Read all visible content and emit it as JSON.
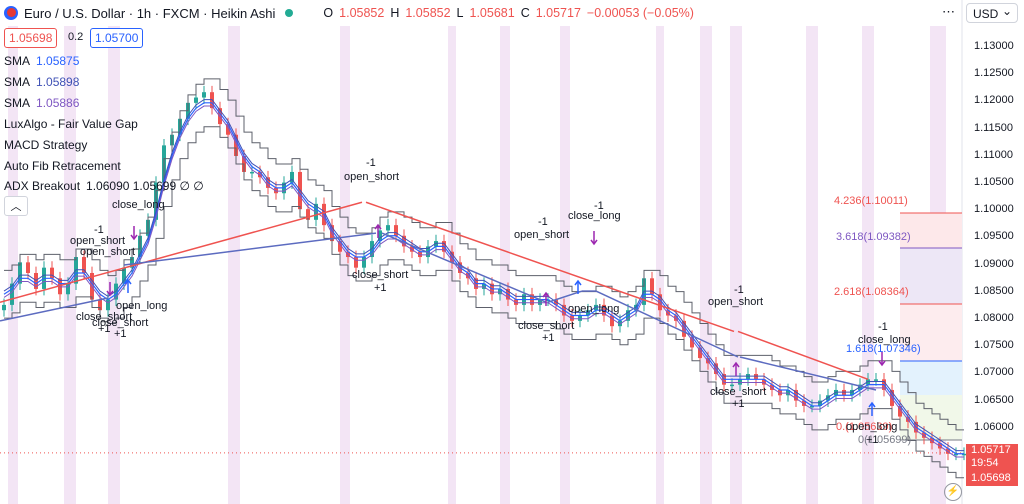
{
  "header": {
    "title": "Euro / U.S. Dollar · 1h · FXCM · Heikin Ashi",
    "ohlc": [
      {
        "k": "O",
        "v": "1.05852"
      },
      {
        "k": "H",
        "v": "1.05852"
      },
      {
        "k": "L",
        "v": "1.05681"
      },
      {
        "k": "C",
        "v": "1.05717"
      }
    ],
    "change": "−0.00053 (−0.05%)",
    "sell_price": "1.05698",
    "spread": "0.2",
    "buy_price": "1.05700",
    "currency": "USD"
  },
  "indicators": [
    {
      "name": "SMA",
      "value": "1.05875",
      "color": "#2962ff"
    },
    {
      "name": "SMA",
      "value": "1.05898",
      "color": "#3f51b5"
    },
    {
      "name": "SMA",
      "value": "1.05886",
      "color": "#7e57c2"
    },
    {
      "name": "LuxAlgo - Fair Value Gap",
      "value": ""
    },
    {
      "name": "MACD Strategy",
      "value": ""
    },
    {
      "name": "Auto Fib Retracement",
      "value": ""
    },
    {
      "name": "ADX Breakout",
      "value": "1.06090  1.05699  ∅  ∅"
    }
  ],
  "price_axis": [
    "1.13000",
    "1.12500",
    "1.12000",
    "1.11500",
    "1.11000",
    "1.10500",
    "1.10000",
    "1.09500",
    "1.09000",
    "1.08500",
    "1.08000",
    "1.07500",
    "1.07000",
    "1.06500",
    "1.06000",
    "1.05500",
    "1.05000"
  ],
  "badges": {
    "last": "1.05717",
    "countdown": "19:54",
    "level": "1.05698"
  },
  "fib_labels": [
    "4.236(1.10011)",
    "3.618(1.09382)",
    "2.618(1.08364)",
    "1.618(1.07346)",
    "0(1.05699)",
    "0.(1.05639)"
  ],
  "trade_labels": [
    {
      "t": "-1"
    },
    {
      "t": "open_short"
    },
    {
      "t": "open_short"
    },
    {
      "t": "close_long"
    },
    {
      "t": "-1"
    },
    {
      "t": "open_short"
    },
    {
      "t": "close_short"
    },
    {
      "t": "+1"
    },
    {
      "t": "-1"
    },
    {
      "t": "close_long"
    },
    {
      "t": "-1"
    },
    {
      "t": "open_short"
    },
    {
      "t": "close_short"
    },
    {
      "t": "+1"
    },
    {
      "t": "open_long"
    },
    {
      "t": "close_short"
    },
    {
      "t": "+1"
    },
    {
      "t": "open_long"
    },
    {
      "t": "close_short"
    },
    {
      "t": "+1"
    },
    {
      "t": "-1"
    },
    {
      "t": "open_short"
    },
    {
      "t": "close_short"
    },
    {
      "t": "+1"
    },
    {
      "t": "-1"
    },
    {
      "t": "close_long"
    },
    {
      "t": "open_long"
    },
    {
      "t": "+1"
    }
  ],
  "colors": {
    "up": "#26a69a",
    "down": "#ef5350",
    "sma1": "#2962ff",
    "sma2": "#3f51b5",
    "sma3": "#7e57c2",
    "band": "#f3e5f5",
    "strategy_up": "#ef5350",
    "strategy_down": "#5c6bc0"
  },
  "chart_data": {
    "type": "candlestick",
    "series_name": "Euro / U.S. Dollar",
    "ylim": [
      1.05,
      1.1335
    ],
    "y_ticks": [
      1.13,
      1.125,
      1.12,
      1.115,
      1.11,
      1.105,
      1.1,
      1.095,
      1.09,
      1.085,
      1.08,
      1.075,
      1.07,
      1.065,
      1.06,
      1.055,
      1.05
    ],
    "last_close": 1.05717,
    "x_index": [
      0,
      8,
      16,
      24,
      32,
      40,
      48,
      56,
      64,
      72,
      80,
      88,
      96,
      104,
      112,
      120,
      128,
      136,
      144,
      152,
      160,
      168,
      176,
      184,
      192,
      200,
      208,
      216,
      224,
      232,
      240,
      248,
      256,
      264,
      272,
      280,
      288,
      296,
      304,
      312,
      320,
      328,
      336,
      344,
      352,
      360,
      368,
      376,
      384,
      392,
      400,
      408,
      416,
      424,
      432,
      440,
      448,
      456,
      464,
      472,
      480,
      488,
      496,
      504,
      512,
      520,
      528,
      536,
      544,
      552,
      560,
      568,
      576,
      584,
      592,
      600,
      608,
      616,
      624,
      632,
      640,
      648,
      656,
      664,
      672,
      680,
      688,
      696,
      704,
      712,
      720,
      728,
      736,
      744,
      752,
      760,
      768,
      776,
      784,
      792,
      800,
      808,
      816,
      824,
      832,
      840,
      848,
      856,
      864,
      872,
      880,
      888,
      896,
      904,
      912,
      920,
      928,
      936,
      944,
      952,
      960
    ],
    "close": [
      1.085,
      1.089,
      1.093,
      1.091,
      1.088,
      1.092,
      1.09,
      1.087,
      1.089,
      1.094,
      1.091,
      1.086,
      1.084,
      1.086,
      1.089,
      1.092,
      1.094,
      1.098,
      1.101,
      1.108,
      1.115,
      1.117,
      1.12,
      1.123,
      1.124,
      1.125,
      1.122,
      1.119,
      1.117,
      1.113,
      1.11,
      1.11,
      1.109,
      1.107,
      1.106,
      1.108,
      1.11,
      1.103,
      1.101,
      1.104,
      1.1,
      1.097,
      1.095,
      1.094,
      1.092,
      1.094,
      1.097,
      1.099,
      1.1,
      1.098,
      1.096,
      1.095,
      1.094,
      1.096,
      1.097,
      1.095,
      1.093,
      1.091,
      1.09,
      1.088,
      1.089,
      1.087,
      1.088,
      1.086,
      1.085,
      1.087,
      1.085,
      1.086,
      1.086,
      1.085,
      1.083,
      1.082,
      1.083,
      1.084,
      1.085,
      1.083,
      1.081,
      1.082,
      1.084,
      1.085,
      1.09,
      1.087,
      1.084,
      1.083,
      1.082,
      1.079,
      1.077,
      1.075,
      1.074,
      1.072,
      1.07,
      1.07,
      1.071,
      1.072,
      1.071,
      1.07,
      1.069,
      1.068,
      1.069,
      1.067,
      1.066,
      1.066,
      1.067,
      1.068,
      1.069,
      1.068,
      1.069,
      1.07,
      1.071,
      1.071,
      1.069,
      1.066,
      1.064,
      1.063,
      1.061,
      1.06,
      1.059,
      1.058,
      1.057,
      1.057,
      1.057
    ],
    "sma": [
      1.087,
      1.088,
      1.09,
      1.09,
      1.089,
      1.09,
      1.09,
      1.089,
      1.089,
      1.091,
      1.091,
      1.089,
      1.087,
      1.086,
      1.087,
      1.089,
      1.091,
      1.094,
      1.097,
      1.102,
      1.108,
      1.113,
      1.117,
      1.12,
      1.122,
      1.123,
      1.123,
      1.121,
      1.119,
      1.116,
      1.113,
      1.111,
      1.11,
      1.108,
      1.107,
      1.107,
      1.108,
      1.106,
      1.104,
      1.103,
      1.102,
      1.099,
      1.097,
      1.095,
      1.094,
      1.094,
      1.095,
      1.097,
      1.098,
      1.098,
      1.097,
      1.096,
      1.095,
      1.095,
      1.096,
      1.096,
      1.094,
      1.092,
      1.091,
      1.089,
      1.089,
      1.088,
      1.088,
      1.087,
      1.086,
      1.086,
      1.086,
      1.086,
      1.086,
      1.085,
      1.084,
      1.083,
      1.083,
      1.083,
      1.084,
      1.084,
      1.083,
      1.082,
      1.083,
      1.084,
      1.087,
      1.087,
      1.086,
      1.084,
      1.083,
      1.081,
      1.079,
      1.077,
      1.075,
      1.073,
      1.071,
      1.071,
      1.071,
      1.071,
      1.071,
      1.071,
      1.07,
      1.069,
      1.069,
      1.068,
      1.067,
      1.066,
      1.066,
      1.067,
      1.068,
      1.068,
      1.068,
      1.069,
      1.07,
      1.07,
      1.07,
      1.068,
      1.066,
      1.064,
      1.062,
      1.061,
      1.06,
      1.059,
      1.058,
      1.057,
      1.057
    ]
  }
}
